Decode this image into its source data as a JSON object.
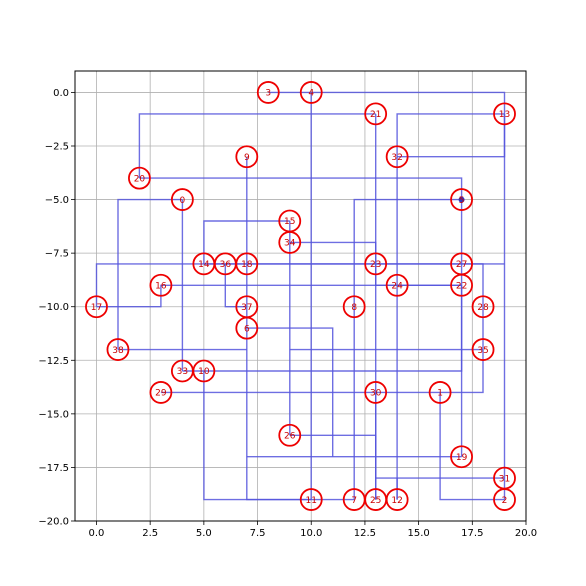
{
  "chart_data": {
    "type": "scatter",
    "title": "",
    "xlabel": "",
    "ylabel": "",
    "xlim": [
      -1,
      20
    ],
    "ylim": [
      -20,
      1
    ],
    "grid": true,
    "x_ticks": [
      0,
      2.5,
      5,
      7.5,
      10,
      12.5,
      15,
      17.5,
      20
    ],
    "x_tick_labels": [
      "0.0",
      "2.5",
      "5.0",
      "7.5",
      "10.0",
      "12.5",
      "15.0",
      "17.5",
      "20.0"
    ],
    "y_ticks": [
      0,
      -2.5,
      -5,
      -7.5,
      -10,
      -12.5,
      -15,
      -17.5,
      -20
    ],
    "y_tick_labels": [
      "0.0",
      "−2.5",
      "−5.0",
      "−7.5",
      "−10.0",
      "−12.5",
      "−15.0",
      "−17.5",
      "−20.0"
    ],
    "colors": {
      "edge": "#5555dd",
      "node": "#ee0000",
      "label": "#cc0000",
      "grid": "#b0b0b0"
    },
    "nodes": [
      {
        "id": "1",
        "x": 16,
        "y": -14
      },
      {
        "id": "2",
        "x": 19,
        "y": -19
      },
      {
        "id": "3",
        "x": 8,
        "y": 0
      },
      {
        "id": "4",
        "x": 10,
        "y": 0
      },
      {
        "id": "5",
        "x": 17,
        "y": -5
      },
      {
        "id": "6",
        "x": 7,
        "y": -11
      },
      {
        "id": "7",
        "x": 12,
        "y": -19
      },
      {
        "id": "8",
        "x": 12,
        "y": -10
      },
      {
        "id": "9",
        "x": 7,
        "y": -3
      },
      {
        "id": "10",
        "x": 5,
        "y": -13
      },
      {
        "id": "11",
        "x": 10,
        "y": -19
      },
      {
        "id": "12",
        "x": 14,
        "y": -19
      },
      {
        "id": "13",
        "x": 19,
        "y": -1
      },
      {
        "id": "14",
        "x": 5,
        "y": -8
      },
      {
        "id": "15",
        "x": 9,
        "y": -6
      },
      {
        "id": "16",
        "x": 3,
        "y": -9
      },
      {
        "id": "17",
        "x": 0,
        "y": -10
      },
      {
        "id": "18",
        "x": 7,
        "y": -8
      },
      {
        "id": "19",
        "x": 17,
        "y": -17
      },
      {
        "id": "20",
        "x": 2,
        "y": -4
      },
      {
        "id": "21",
        "x": 13,
        "y": -1
      },
      {
        "id": "22",
        "x": 17,
        "y": -9
      },
      {
        "id": "23",
        "x": 13,
        "y": -8
      },
      {
        "id": "24",
        "x": 14,
        "y": -9
      },
      {
        "id": "25",
        "x": 13,
        "y": -19
      },
      {
        "id": "26",
        "x": 9,
        "y": -16
      },
      {
        "id": "27",
        "x": 17,
        "y": -8
      },
      {
        "id": "28",
        "x": 18,
        "y": -10
      },
      {
        "id": "29",
        "x": 3,
        "y": -14
      },
      {
        "id": "30",
        "x": 13,
        "y": -14
      },
      {
        "id": "31",
        "x": 19,
        "y": -18
      },
      {
        "id": "32",
        "x": 14,
        "y": -3
      },
      {
        "id": "33",
        "x": 4,
        "y": -13
      },
      {
        "id": "34",
        "x": 9,
        "y": -7
      },
      {
        "id": "35",
        "x": 18,
        "y": -12
      },
      {
        "id": "36",
        "x": 6,
        "y": -8
      },
      {
        "id": "37",
        "x": 7,
        "y": -10
      },
      {
        "id": "38",
        "x": 1,
        "y": -12
      },
      {
        "id": "0",
        "x": 4,
        "y": -5
      }
    ],
    "edges": [
      [
        [
          8,
          0
        ],
        [
          19,
          0
        ],
        [
          19,
          -19
        ]
      ],
      [
        [
          10,
          0
        ],
        [
          10,
          -19
        ]
      ],
      [
        [
          19,
          -1
        ],
        [
          19,
          -3
        ],
        [
          14,
          -3
        ]
      ],
      [
        [
          13,
          -1
        ],
        [
          13,
          -9
        ],
        [
          17,
          -9
        ]
      ],
      [
        [
          2,
          -4
        ],
        [
          2,
          -1
        ],
        [
          13,
          -1
        ]
      ],
      [
        [
          2,
          -4
        ],
        [
          17,
          -4
        ],
        [
          17,
          -5
        ]
      ],
      [
        [
          7,
          -3
        ],
        [
          7,
          -19
        ],
        [
          12,
          -19
        ]
      ],
      [
        [
          4,
          -5
        ],
        [
          1,
          -5
        ],
        [
          1,
          -12
        ]
      ],
      [
        [
          4,
          -5
        ],
        [
          4,
          -13
        ]
      ],
      [
        [
          17,
          -5
        ],
        [
          12,
          -5
        ],
        [
          12,
          -19
        ]
      ],
      [
        [
          17,
          -5
        ],
        [
          17,
          -17
        ]
      ],
      [
        [
          9,
          -6
        ],
        [
          5,
          -6
        ],
        [
          5,
          -8
        ]
      ],
      [
        [
          9,
          -6
        ],
        [
          9,
          -16
        ]
      ],
      [
        [
          9,
          -7
        ],
        [
          13,
          -7
        ],
        [
          13,
          -19
        ]
      ],
      [
        [
          5,
          -8
        ],
        [
          18,
          -8
        ],
        [
          18,
          -10
        ]
      ],
      [
        [
          0,
          -10
        ],
        [
          0,
          -8
        ],
        [
          19,
          -8
        ]
      ],
      [
        [
          0,
          -10
        ],
        [
          3,
          -10
        ],
        [
          3,
          -9
        ],
        [
          17,
          -9
        ]
      ],
      [
        [
          6,
          -8
        ],
        [
          6,
          -10
        ],
        [
          7,
          -10
        ]
      ],
      [
        [
          14,
          -9
        ],
        [
          14,
          -1
        ],
        [
          19,
          -1
        ]
      ],
      [
        [
          14,
          -9
        ],
        [
          14,
          -19
        ]
      ],
      [
        [
          7,
          -11
        ],
        [
          11,
          -11
        ],
        [
          11,
          -17
        ]
      ],
      [
        [
          1,
          -12
        ],
        [
          7,
          -12
        ]
      ],
      [
        [
          4,
          -13
        ],
        [
          17,
          -13
        ],
        [
          17,
          -12
        ],
        [
          18,
          -12
        ]
      ],
      [
        [
          5,
          -13
        ],
        [
          5,
          -19
        ],
        [
          10,
          -19
        ]
      ],
      [
        [
          3,
          -14
        ],
        [
          18,
          -14
        ],
        [
          18,
          -10
        ]
      ],
      [
        [
          13,
          -14
        ],
        [
          13,
          -18
        ],
        [
          19,
          -18
        ]
      ],
      [
        [
          16,
          -14
        ],
        [
          16,
          -19
        ],
        [
          19,
          -19
        ]
      ],
      [
        [
          9,
          -12
        ],
        [
          17,
          -12
        ],
        [
          17,
          -9
        ]
      ],
      [
        [
          9,
          -16
        ],
        [
          13,
          -16
        ],
        [
          13,
          -19
        ]
      ],
      [
        [
          7,
          -17
        ],
        [
          17,
          -17
        ]
      ],
      [
        [
          14,
          -19
        ],
        [
          14,
          -18
        ]
      ]
    ]
  }
}
